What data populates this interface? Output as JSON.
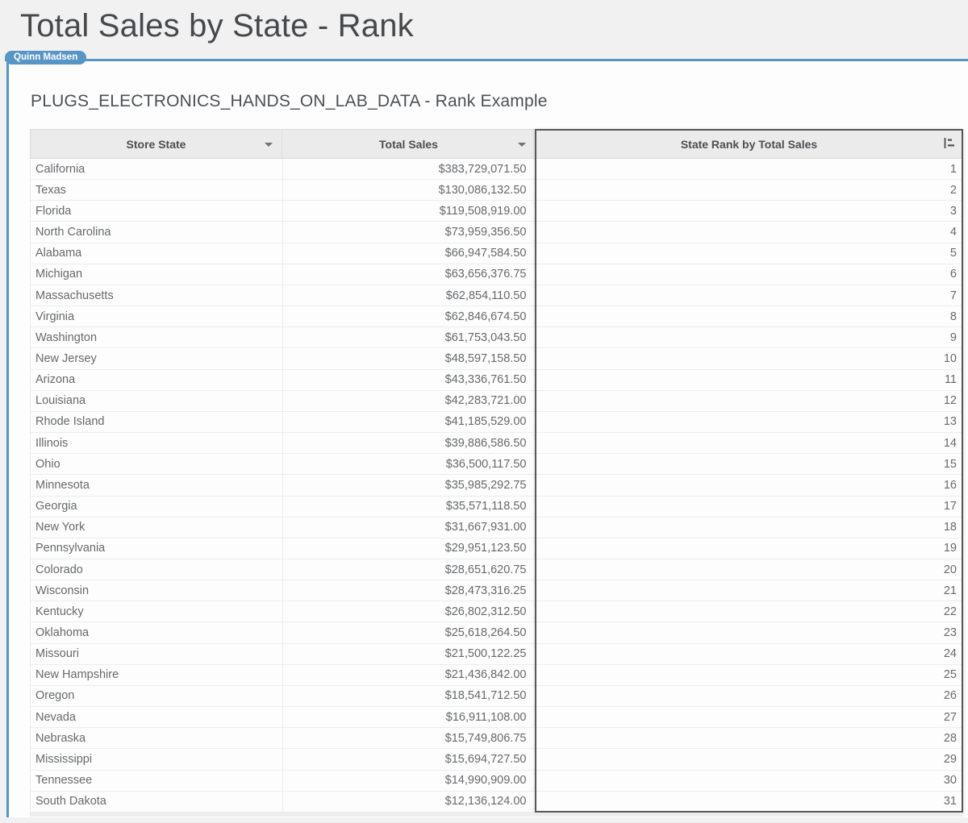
{
  "page": {
    "title": "Total Sales by State - Rank",
    "presence_badge": "Quinn Madsen",
    "accent_color": "#5795c5"
  },
  "sheet": {
    "subtitle": "PLUGS_ELECTRONICS_HANDS_ON_LAB_DATA - Rank Example"
  },
  "table": {
    "header_bg_color": "#ebebeb",
    "selected_column_border_color": "#55575a",
    "columns": [
      {
        "label": "Store State",
        "has_menu": true,
        "align": "left"
      },
      {
        "label": "Total Sales",
        "has_menu": true,
        "align": "right"
      },
      {
        "label": "State Rank by Total Sales",
        "selected": true,
        "icon": "ranked-list-icon",
        "align": "right"
      }
    ],
    "rows": [
      {
        "state": "California",
        "total_sales": "$383,729,071.50",
        "rank": 1
      },
      {
        "state": "Texas",
        "total_sales": "$130,086,132.50",
        "rank": 2
      },
      {
        "state": "Florida",
        "total_sales": "$119,508,919.00",
        "rank": 3
      },
      {
        "state": "North Carolina",
        "total_sales": "$73,959,356.50",
        "rank": 4
      },
      {
        "state": "Alabama",
        "total_sales": "$66,947,584.50",
        "rank": 5
      },
      {
        "state": "Michigan",
        "total_sales": "$63,656,376.75",
        "rank": 6
      },
      {
        "state": "Massachusetts",
        "total_sales": "$62,854,110.50",
        "rank": 7
      },
      {
        "state": "Virginia",
        "total_sales": "$62,846,674.50",
        "rank": 8
      },
      {
        "state": "Washington",
        "total_sales": "$61,753,043.50",
        "rank": 9
      },
      {
        "state": "New Jersey",
        "total_sales": "$48,597,158.50",
        "rank": 10
      },
      {
        "state": "Arizona",
        "total_sales": "$43,336,761.50",
        "rank": 11
      },
      {
        "state": "Louisiana",
        "total_sales": "$42,283,721.00",
        "rank": 12
      },
      {
        "state": "Rhode Island",
        "total_sales": "$41,185,529.00",
        "rank": 13
      },
      {
        "state": "Illinois",
        "total_sales": "$39,886,586.50",
        "rank": 14
      },
      {
        "state": "Ohio",
        "total_sales": "$36,500,117.50",
        "rank": 15
      },
      {
        "state": "Minnesota",
        "total_sales": "$35,985,292.75",
        "rank": 16
      },
      {
        "state": "Georgia",
        "total_sales": "$35,571,118.50",
        "rank": 17
      },
      {
        "state": "New York",
        "total_sales": "$31,667,931.00",
        "rank": 18
      },
      {
        "state": "Pennsylvania",
        "total_sales": "$29,951,123.50",
        "rank": 19
      },
      {
        "state": "Colorado",
        "total_sales": "$28,651,620.75",
        "rank": 20
      },
      {
        "state": "Wisconsin",
        "total_sales": "$28,473,316.25",
        "rank": 21
      },
      {
        "state": "Kentucky",
        "total_sales": "$26,802,312.50",
        "rank": 22
      },
      {
        "state": "Oklahoma",
        "total_sales": "$25,618,264.50",
        "rank": 23
      },
      {
        "state": "Missouri",
        "total_sales": "$21,500,122.25",
        "rank": 24
      },
      {
        "state": "New Hampshire",
        "total_sales": "$21,436,842.00",
        "rank": 25
      },
      {
        "state": "Oregon",
        "total_sales": "$18,541,712.50",
        "rank": 26
      },
      {
        "state": "Nevada",
        "total_sales": "$16,911,108.00",
        "rank": 27
      },
      {
        "state": "Nebraska",
        "total_sales": "$15,749,806.75",
        "rank": 28
      },
      {
        "state": "Mississippi",
        "total_sales": "$15,694,727.50",
        "rank": 29
      },
      {
        "state": "Tennessee",
        "total_sales": "$14,990,909.00",
        "rank": 30
      },
      {
        "state": "South Dakota",
        "total_sales": "$12,136,124.00",
        "rank": 31
      }
    ]
  }
}
